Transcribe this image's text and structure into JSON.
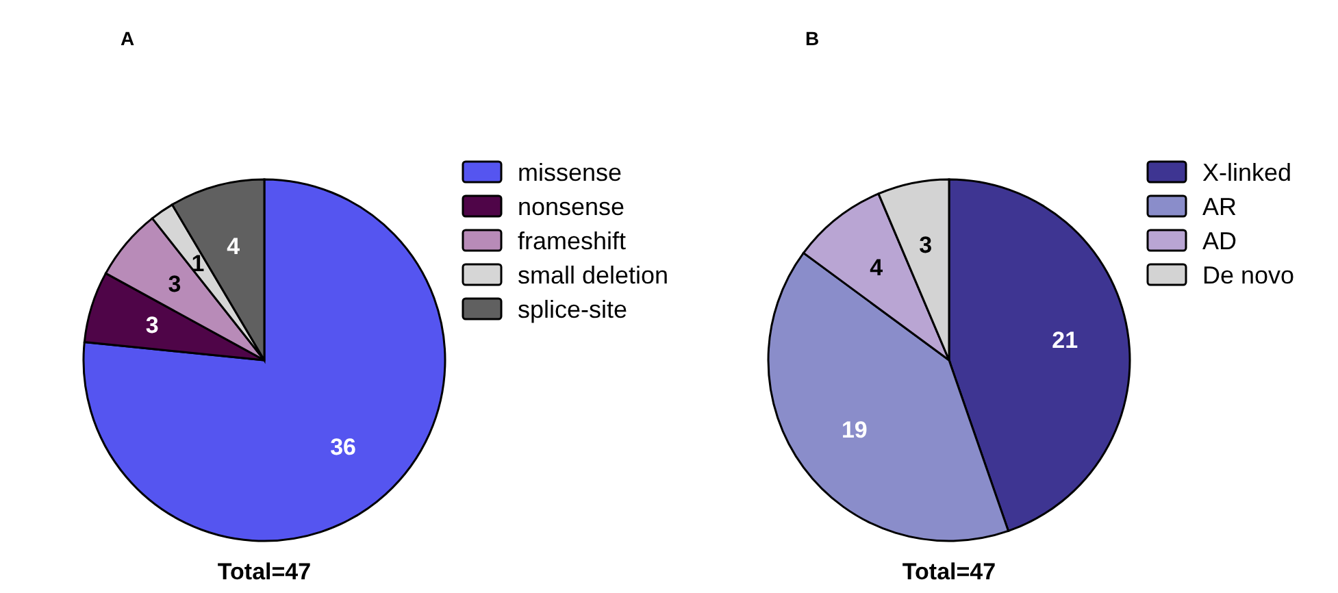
{
  "chart_data": [
    {
      "type": "pie",
      "title": "A",
      "categories": [
        "missense",
        "nonsense",
        "frameshift",
        "small deletion",
        "splice-site"
      ],
      "values": [
        36,
        3,
        3,
        1,
        4
      ],
      "colors": [
        "#5555f0",
        "#4f0548",
        "#b88bb8",
        "#d6d6d6",
        "#606060"
      ],
      "data_labels": true,
      "legend": "right",
      "annotations": [
        "Total=47"
      ]
    },
    {
      "type": "pie",
      "title": "B",
      "categories": [
        "X-linked",
        "AR",
        "AD",
        "De novo"
      ],
      "values": [
        21,
        19,
        4,
        3
      ],
      "colors": [
        "#3e3592",
        "#8a8dca",
        "#b9a5d3",
        "#d3d3d3"
      ],
      "data_labels": true,
      "legend": "right",
      "annotations": [
        "Total=47"
      ]
    }
  ]
}
